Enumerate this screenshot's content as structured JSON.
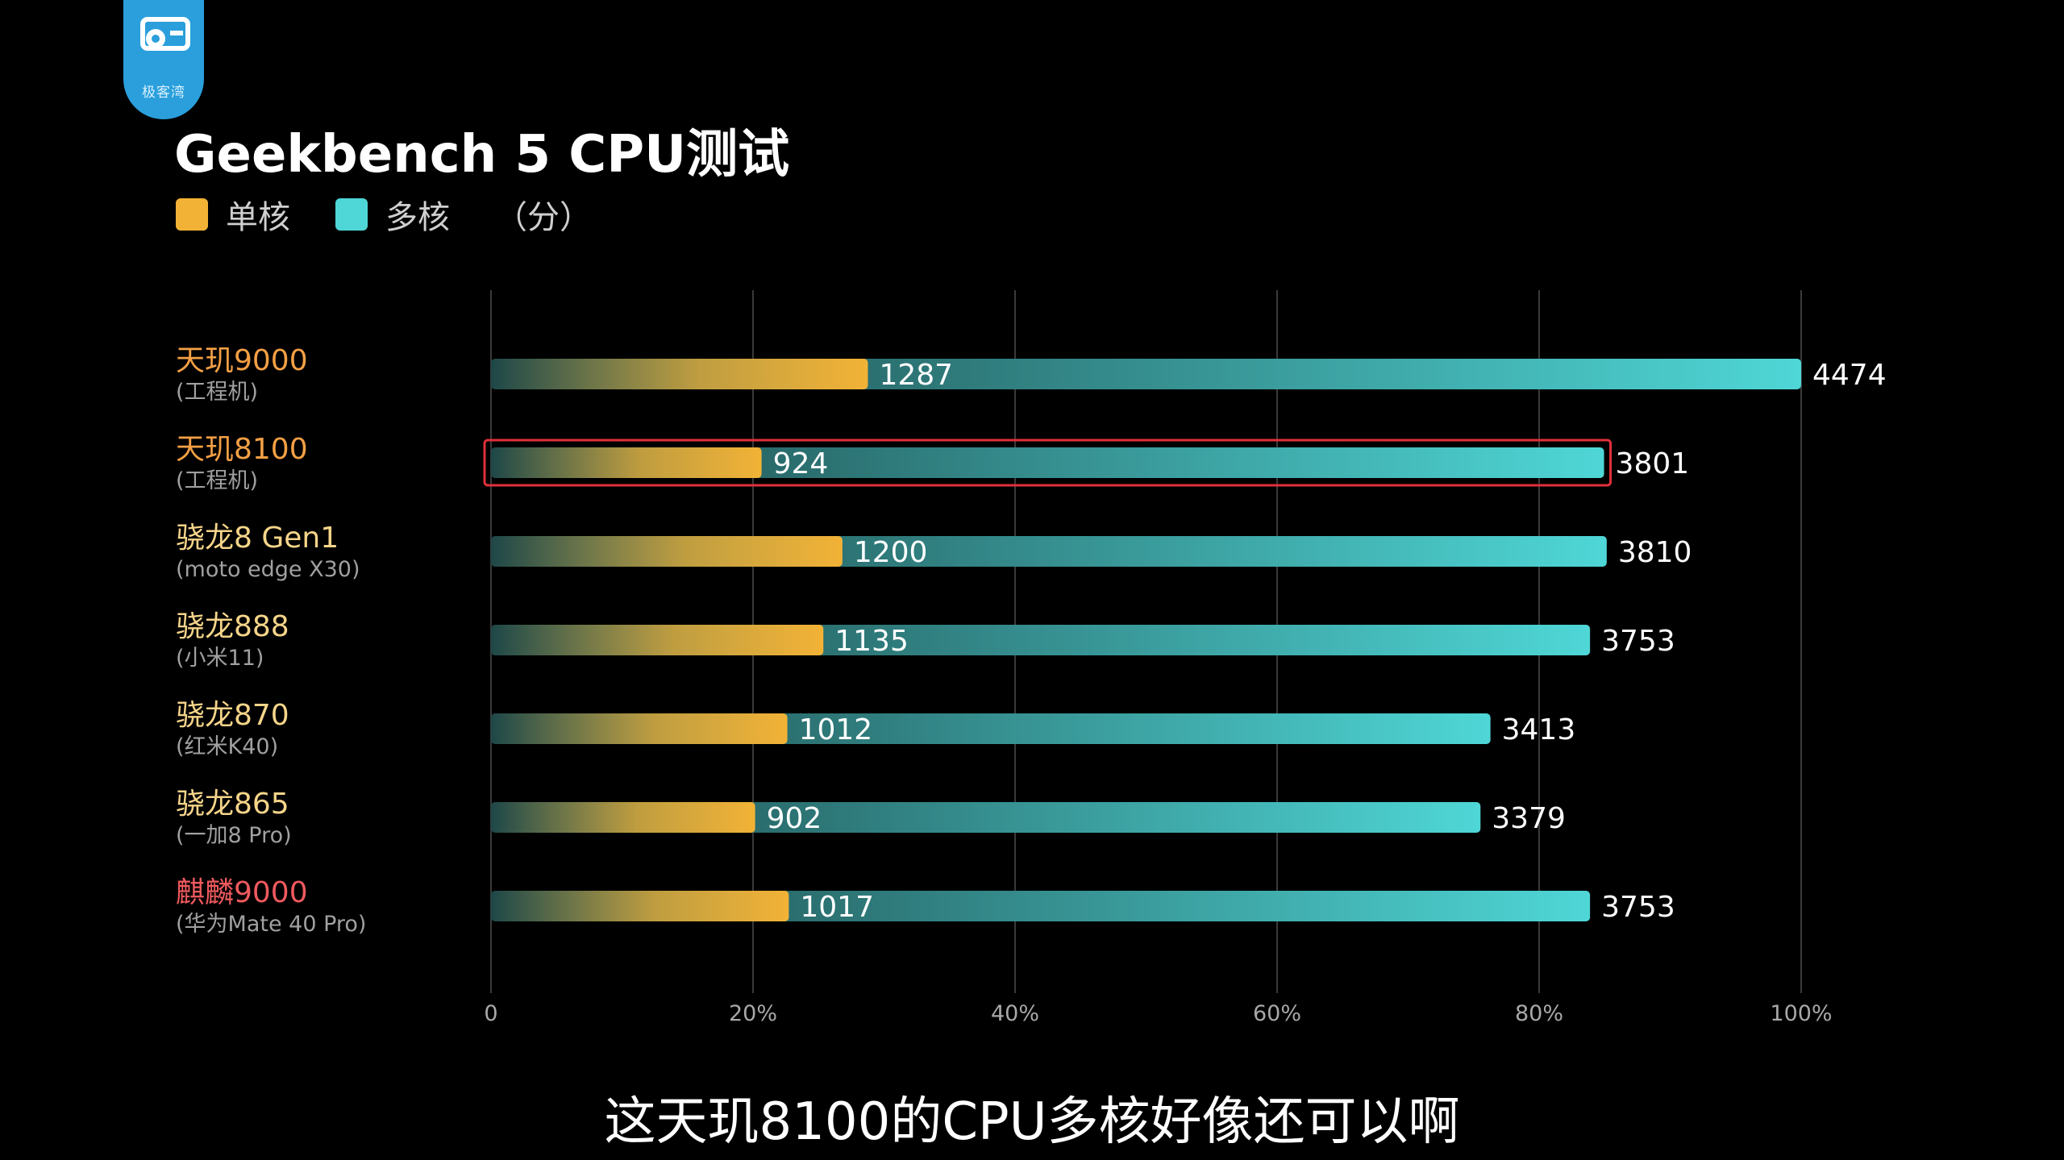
{
  "logo": {
    "icon": "geek-wan-logo-icon",
    "text": "极客湾"
  },
  "legend": [
    {
      "label": "单核",
      "color": "#f2b236"
    },
    {
      "label": "多核",
      "color": "#4fd6d6"
    }
  ],
  "legend_unit": "（分）",
  "subtitle": "这天玑8100的CPU多核好像还可以啊",
  "highlight_color": "#e0303a",
  "chart_data": {
    "type": "bar",
    "orientation": "horizontal",
    "stacked": false,
    "title": "Geekbench 5 CPU测试",
    "unit": "（分）",
    "xlim": [
      0,
      4474
    ],
    "x_ticks": [
      "0",
      "20%",
      "40%",
      "60%",
      "80%",
      "100%"
    ],
    "grid": true,
    "legend_position": "top-left",
    "categories": [
      {
        "name": "天玑9000",
        "sub": "(工程机)",
        "name_color": "#f5a045"
      },
      {
        "name": "天玑8100",
        "sub": "(工程机)",
        "name_color": "#f5a045",
        "highlighted": true
      },
      {
        "name": "骁龙8 Gen1",
        "sub": "(moto edge X30)",
        "name_color": "#f6d58a"
      },
      {
        "name": "骁龙888",
        "sub": "(小米11)",
        "name_color": "#f6d58a"
      },
      {
        "name": "骁龙870",
        "sub": "(红米K40)",
        "name_color": "#f6d58a"
      },
      {
        "name": "骁龙865",
        "sub": "(一加8 Pro)",
        "name_color": "#f6d58a"
      },
      {
        "name": "麒麟9000",
        "sub": "(华为Mate 40 Pro)",
        "name_color": "#f05a5f"
      }
    ],
    "series": [
      {
        "name": "单核",
        "color": "#f2b236",
        "values": [
          1287,
          924,
          1200,
          1135,
          1012,
          902,
          1017
        ]
      },
      {
        "name": "多核",
        "color": "#4fd6d6",
        "values": [
          4474,
          3801,
          3810,
          3753,
          3413,
          3379,
          3753
        ]
      }
    ]
  }
}
